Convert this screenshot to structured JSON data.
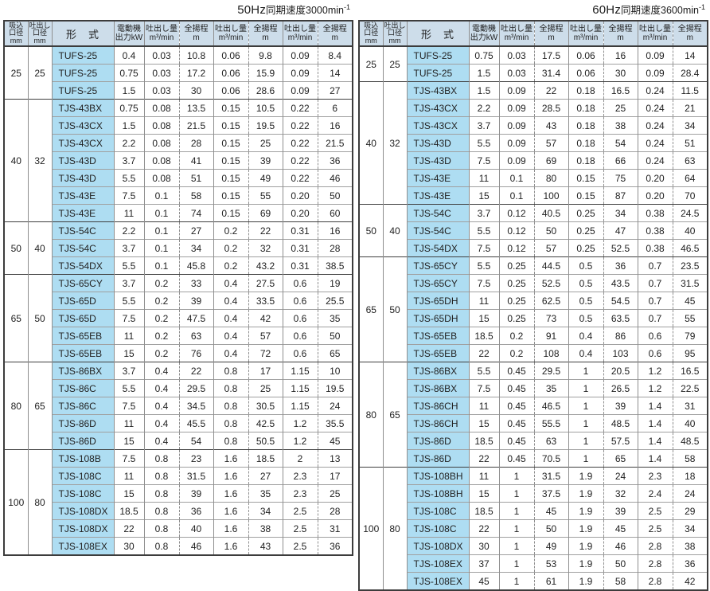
{
  "header_columns": {
    "suction": {
      "lines": [
        "吸込",
        "口径",
        "mm"
      ]
    },
    "discharge": {
      "lines": [
        "吐出し",
        "口径",
        "mm"
      ]
    },
    "model": {
      "label": "形　式"
    },
    "motor": {
      "lines": [
        "電動機",
        "出力kW"
      ]
    },
    "flow": {
      "lines": [
        "吐出し量",
        "m³/min"
      ]
    },
    "head": {
      "lines": [
        "全揚程",
        "m"
      ]
    }
  },
  "colors": {
    "header_bg": "#cdddea",
    "model_cell_bg": "#aeddf2",
    "border_dark": "#3c3c3c",
    "border_gray": "#8f8f8f"
  },
  "tables": [
    {
      "id": "50hz",
      "title": {
        "freq": "50Hz",
        "label": "同期速度3000min",
        "sup": "-1"
      },
      "groups": [
        {
          "suction": "25",
          "discharge": "25",
          "rows": [
            [
              "TUFS-25",
              "0.4",
              "0.03",
              "10.8",
              "0.06",
              "9.8",
              "0.09",
              "8.4"
            ],
            [
              "TUFS-25",
              "0.75",
              "0.03",
              "17.2",
              "0.06",
              "15.9",
              "0.09",
              "14"
            ],
            [
              "TUFS-25",
              "1.5",
              "0.03",
              "30",
              "0.06",
              "28.6",
              "0.09",
              "27"
            ]
          ]
        },
        {
          "suction": "40",
          "discharge": "32",
          "rows": [
            [
              "TJS-43BX",
              "0.75",
              "0.08",
              "13.5",
              "0.15",
              "10.5",
              "0.22",
              "6"
            ],
            [
              "TJS-43CX",
              "1.5",
              "0.08",
              "21.5",
              "0.15",
              "19.5",
              "0.22",
              "16"
            ],
            [
              "TJS-43CX",
              "2.2",
              "0.08",
              "28",
              "0.15",
              "25",
              "0.22",
              "21.5"
            ],
            [
              "TJS-43D",
              "3.7",
              "0.08",
              "41",
              "0.15",
              "39",
              "0.22",
              "36"
            ],
            [
              "TJS-43D",
              "5.5",
              "0.08",
              "51",
              "0.15",
              "49",
              "0.22",
              "46"
            ],
            [
              "TJS-43E",
              "7.5",
              "0.1",
              "58",
              "0.15",
              "55",
              "0.20",
              "50"
            ],
            [
              "TJS-43E",
              "11",
              "0.1",
              "74",
              "0.15",
              "69",
              "0.20",
              "60"
            ]
          ]
        },
        {
          "suction": "50",
          "discharge": "40",
          "rows": [
            [
              "TJS-54C",
              "2.2",
              "0.1",
              "27",
              "0.2",
              "22",
              "0.31",
              "16"
            ],
            [
              "TJS-54C",
              "3.7",
              "0.1",
              "34",
              "0.2",
              "32",
              "0.31",
              "28"
            ],
            [
              "TJS-54DX",
              "5.5",
              "0.1",
              "45.8",
              "0.2",
              "43.2",
              "0.31",
              "38.5"
            ]
          ]
        },
        {
          "suction": "65",
          "discharge": "50",
          "rows": [
            [
              "TJS-65CY",
              "3.7",
              "0.2",
              "33",
              "0.4",
              "27.5",
              "0.6",
              "19"
            ],
            [
              "TJS-65D",
              "5.5",
              "0.2",
              "39",
              "0.4",
              "33.5",
              "0.6",
              "25.5"
            ],
            [
              "TJS-65D",
              "7.5",
              "0.2",
              "47.5",
              "0.4",
              "42",
              "0.6",
              "35"
            ],
            [
              "TJS-65EB",
              "11",
              "0.2",
              "63",
              "0.4",
              "57",
              "0.6",
              "50"
            ],
            [
              "TJS-65EB",
              "15",
              "0.2",
              "76",
              "0.4",
              "72",
              "0.6",
              "65"
            ]
          ]
        },
        {
          "suction": "80",
          "discharge": "65",
          "rows": [
            [
              "TJS-86BX",
              "3.7",
              "0.4",
              "22",
              "0.8",
              "17",
              "1.15",
              "10"
            ],
            [
              "TJS-86C",
              "5.5",
              "0.4",
              "29.5",
              "0.8",
              "25",
              "1.15",
              "19.5"
            ],
            [
              "TJS-86C",
              "7.5",
              "0.4",
              "34.5",
              "0.8",
              "30.5",
              "1.15",
              "24"
            ],
            [
              "TJS-86D",
              "11",
              "0.4",
              "45.5",
              "0.8",
              "42.5",
              "1.2",
              "35.5"
            ],
            [
              "TJS-86D",
              "15",
              "0.4",
              "54",
              "0.8",
              "50.5",
              "1.2",
              "45"
            ]
          ]
        },
        {
          "suction": "100",
          "discharge": "80",
          "rows": [
            [
              "TJS-108B",
              "7.5",
              "0.8",
              "23",
              "1.6",
              "18.5",
              "2",
              "13"
            ],
            [
              "TJS-108C",
              "11",
              "0.8",
              "31.5",
              "1.6",
              "27",
              "2.3",
              "17"
            ],
            [
              "TJS-108C",
              "15",
              "0.8",
              "39",
              "1.6",
              "35",
              "2.3",
              "25"
            ],
            [
              "TJS-108DX",
              "18.5",
              "0.8",
              "36",
              "1.6",
              "34",
              "2.5",
              "28"
            ],
            [
              "TJS-108DX",
              "22",
              "0.8",
              "40",
              "1.6",
              "38",
              "2.5",
              "31"
            ],
            [
              "TJS-108EX",
              "30",
              "0.8",
              "46",
              "1.6",
              "43",
              "2.5",
              "36"
            ]
          ]
        }
      ]
    },
    {
      "id": "60hz",
      "title": {
        "freq": "60Hz",
        "label": "同期速度3600min",
        "sup": "-1"
      },
      "groups": [
        {
          "suction": "25",
          "discharge": "25",
          "rows": [
            [
              "TUFS-25",
              "0.75",
              "0.03",
              "17.5",
              "0.06",
              "16",
              "0.09",
              "14"
            ],
            [
              "TUFS-25",
              "1.5",
              "0.03",
              "31.4",
              "0.06",
              "30",
              "0.09",
              "28.4"
            ]
          ]
        },
        {
          "suction": "40",
          "discharge": "32",
          "rows": [
            [
              "TJS-43BX",
              "1.5",
              "0.09",
              "22",
              "0.18",
              "16.5",
              "0.24",
              "11.5"
            ],
            [
              "TJS-43CX",
              "2.2",
              "0.09",
              "28.5",
              "0.18",
              "25",
              "0.24",
              "21"
            ],
            [
              "TJS-43CX",
              "3.7",
              "0.09",
              "43",
              "0.18",
              "38",
              "0.24",
              "34"
            ],
            [
              "TJS-43D",
              "5.5",
              "0.09",
              "57",
              "0.18",
              "54",
              "0.24",
              "51"
            ],
            [
              "TJS-43D",
              "7.5",
              "0.09",
              "69",
              "0.18",
              "66",
              "0.24",
              "63"
            ],
            [
              "TJS-43E",
              "11",
              "0.1",
              "80",
              "0.15",
              "75",
              "0.20",
              "64"
            ],
            [
              "TJS-43E",
              "15",
              "0.1",
              "100",
              "0.15",
              "87",
              "0.20",
              "70"
            ]
          ]
        },
        {
          "suction": "50",
          "discharge": "40",
          "rows": [
            [
              "TJS-54C",
              "3.7",
              "0.12",
              "40.5",
              "0.25",
              "34",
              "0.38",
              "24.5"
            ],
            [
              "TJS-54C",
              "5.5",
              "0.12",
              "50",
              "0.25",
              "47",
              "0.38",
              "40"
            ],
            [
              "TJS-54DX",
              "7.5",
              "0.12",
              "57",
              "0.25",
              "52.5",
              "0.38",
              "46.5"
            ]
          ]
        },
        {
          "suction": "65",
          "discharge": "50",
          "rows": [
            [
              "TJS-65CY",
              "5.5",
              "0.25",
              "44.5",
              "0.5",
              "36",
              "0.7",
              "23.5"
            ],
            [
              "TJS-65CY",
              "7.5",
              "0.25",
              "52.5",
              "0.5",
              "43.5",
              "0.7",
              "31.5"
            ],
            [
              "TJS-65DH",
              "11",
              "0.25",
              "62.5",
              "0.5",
              "54.5",
              "0.7",
              "45"
            ],
            [
              "TJS-65DH",
              "15",
              "0.25",
              "73",
              "0.5",
              "63.5",
              "0.7",
              "55"
            ],
            [
              "TJS-65EB",
              "18.5",
              "0.2",
              "91",
              "0.4",
              "86",
              "0.6",
              "79"
            ],
            [
              "TJS-65EB",
              "22",
              "0.2",
              "108",
              "0.4",
              "103",
              "0.6",
              "95"
            ]
          ]
        },
        {
          "suction": "80",
          "discharge": "65",
          "rows": [
            [
              "TJS-86BX",
              "5.5",
              "0.45",
              "29.5",
              "1",
              "20.5",
              "1.2",
              "16.5"
            ],
            [
              "TJS-86BX",
              "7.5",
              "0.45",
              "35",
              "1",
              "26.5",
              "1.2",
              "22.5"
            ],
            [
              "TJS-86CH",
              "11",
              "0.45",
              "46.5",
              "1",
              "39",
              "1.4",
              "31"
            ],
            [
              "TJS-86CH",
              "15",
              "0.45",
              "55.5",
              "1",
              "48.5",
              "1.4",
              "40"
            ],
            [
              "TJS-86D",
              "18.5",
              "0.45",
              "63",
              "1",
              "57.5",
              "1.4",
              "48.5"
            ],
            [
              "TJS-86D",
              "22",
              "0.45",
              "70.5",
              "1",
              "65",
              "1.4",
              "58"
            ]
          ]
        },
        {
          "suction": "100",
          "discharge": "80",
          "rows": [
            [
              "TJS-108BH",
              "11",
              "1",
              "31.5",
              "1.9",
              "24",
              "2.3",
              "18"
            ],
            [
              "TJS-108BH",
              "15",
              "1",
              "37.5",
              "1.9",
              "32",
              "2.4",
              "24"
            ],
            [
              "TJS-108C",
              "18.5",
              "1",
              "45",
              "1.9",
              "39",
              "2.5",
              "29"
            ],
            [
              "TJS-108C",
              "22",
              "1",
              "50",
              "1.9",
              "45",
              "2.5",
              "34"
            ],
            [
              "TJS-108DX",
              "30",
              "1",
              "49",
              "1.9",
              "46",
              "2.8",
              "38"
            ],
            [
              "TJS-108EX",
              "37",
              "1",
              "53",
              "1.9",
              "50",
              "2.8",
              "36"
            ],
            [
              "TJS-108EX",
              "45",
              "1",
              "61",
              "1.9",
              "58",
              "2.8",
              "42"
            ]
          ]
        }
      ]
    }
  ]
}
